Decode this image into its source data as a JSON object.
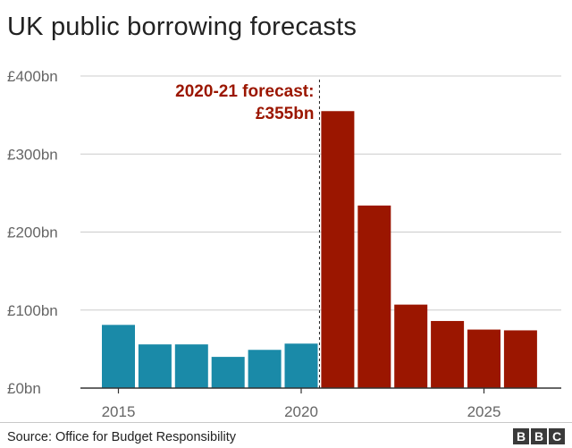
{
  "chart_data": {
    "type": "bar",
    "title": "UK public borrowing forecasts",
    "xlabel": "",
    "ylabel": "",
    "x": [
      2015,
      2016,
      2017,
      2018,
      2019,
      2020,
      2021,
      2022,
      2023,
      2024,
      2025,
      2026
    ],
    "values": [
      81,
      56,
      56,
      40,
      49,
      57,
      355,
      234,
      107,
      86,
      75,
      74
    ],
    "series_split": {
      "actual_last_index": 5
    },
    "colors": {
      "actual": "#1a8aa8",
      "forecast": "#9b1600"
    },
    "ylim": [
      0,
      400
    ],
    "yticks": [
      0,
      100,
      200,
      300,
      400
    ],
    "ytick_labels": [
      "£0bn",
      "£100bn",
      "£200bn",
      "£300bn",
      "£400bn"
    ],
    "xtick_labels": [
      "2015",
      "2020",
      "2025"
    ],
    "xtick_values": [
      2015,
      2020,
      2025
    ],
    "grid": true,
    "annotation": {
      "line1": "2020-21 forecast:",
      "line2": "£355bn"
    }
  },
  "header": {
    "title": "UK public borrowing forecasts"
  },
  "footer": {
    "source": "Source: Office for Budget Responsibility",
    "logo_letters": [
      "B",
      "B",
      "C"
    ]
  }
}
